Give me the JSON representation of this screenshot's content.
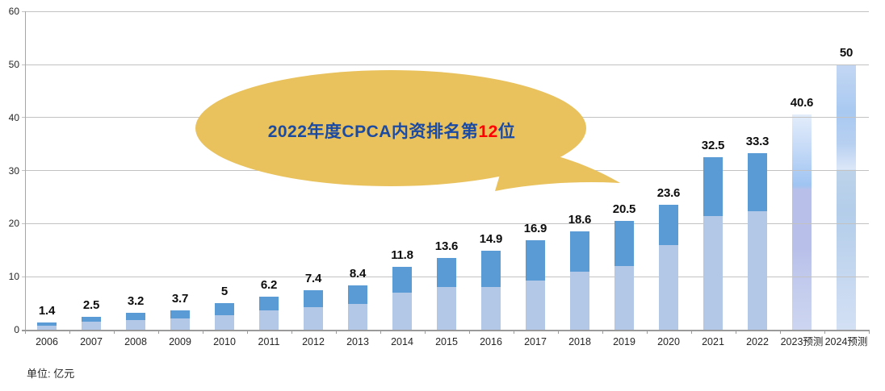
{
  "chart_data": {
    "type": "bar",
    "stacked": true,
    "unit_label": "单位: 亿元",
    "legend": "none",
    "grid": true,
    "y_axis": {
      "min": 0,
      "max": 60,
      "tick_step": 10,
      "ticks": [
        0,
        10,
        20,
        30,
        40,
        50,
        60
      ]
    },
    "categories": [
      "2006",
      "2007",
      "2008",
      "2009",
      "2010",
      "2011",
      "2012",
      "2013",
      "2014",
      "2015",
      "2016",
      "2017",
      "2018",
      "2019",
      "2020",
      "2021",
      "2022",
      "2023预测",
      "2024预测"
    ],
    "totals": [
      1.4,
      2.5,
      3.2,
      3.7,
      5,
      6.2,
      7.4,
      8.4,
      11.8,
      13.6,
      14.9,
      16.9,
      18.6,
      20.5,
      23.6,
      32.5,
      33.3,
      40.6,
      50
    ],
    "data_labels": [
      "1.4",
      "2.5",
      "3.2",
      "3.7",
      "5",
      "6.2",
      "7.4",
      "8.4",
      "11.8",
      "13.6",
      "14.9",
      "16.9",
      "18.6",
      "20.5",
      "23.6",
      "32.5",
      "33.3",
      "40.6",
      "50"
    ],
    "series": [
      {
        "name": "lower-light-blue-segment",
        "color": "#b3c7e7",
        "values": [
          0.7,
          1.5,
          1.8,
          2.1,
          2.8,
          3.7,
          4.2,
          4.9,
          7.0,
          8.0,
          8.1,
          9.2,
          11.0,
          12.0,
          16.0,
          21.5,
          22.3,
          null,
          null
        ]
      },
      {
        "name": "upper-dark-blue-segment",
        "color": "#5b9bd5",
        "values": [
          0.7,
          1.0,
          1.4,
          1.6,
          2.2,
          2.5,
          3.2,
          3.5,
          4.8,
          5.6,
          6.8,
          7.7,
          7.6,
          8.5,
          7.6,
          11.0,
          11.0,
          null,
          null
        ]
      }
    ],
    "forecast": {
      "indices": [
        17,
        18
      ],
      "gradients": {
        "2023预测": [
          [
            "#e3edfb",
            0
          ],
          [
            "#c7dbf7",
            0.15
          ],
          [
            "#9fc4f2",
            0.33
          ],
          [
            "#b8c0ea",
            0.35
          ],
          [
            "#b8c0ea",
            0.62
          ],
          [
            "#c5cdee",
            0.82
          ],
          [
            "#ccd5f0",
            1
          ]
        ],
        "2024预测": [
          [
            "#c3d7f3",
            0
          ],
          [
            "#a9c9f1",
            0.18
          ],
          [
            "#b7d0f1",
            0.3
          ],
          [
            "#dce7f8",
            0.395
          ],
          [
            "#bdd3ea",
            0.4
          ],
          [
            "#b3cdea",
            0.55
          ],
          [
            "#c9daf1",
            0.85
          ],
          [
            "#d3e0f4",
            1
          ]
        ]
      }
    }
  },
  "callout": {
    "prefix": "2022年度CPCA内资排名第",
    "highlight": "12",
    "suffix": "位",
    "bubble_color": "#e9c25e",
    "text_color": "#1b4aa2",
    "highlight_color": "#ff0000"
  },
  "colors": {
    "background": "#ffffff",
    "gridline": "#c2c2c2",
    "axis": "#9a9a9a",
    "data_label": "#0d0d0d",
    "tick_label": "#262626"
  }
}
